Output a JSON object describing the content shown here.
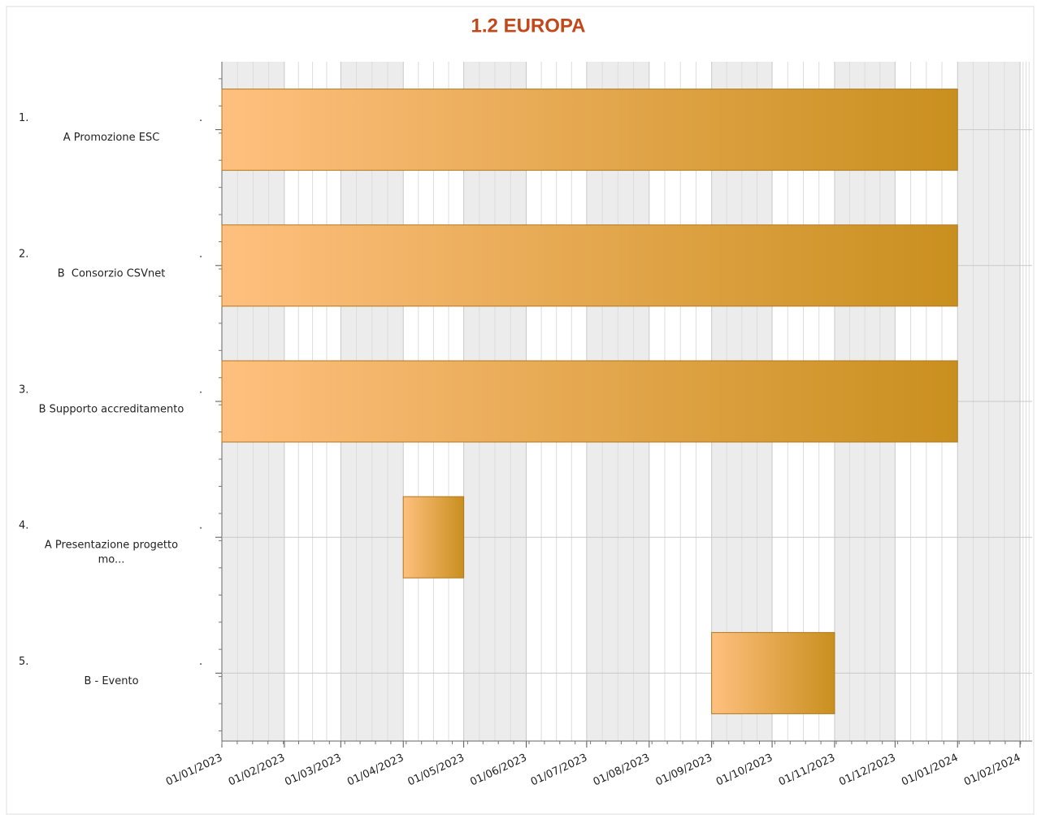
{
  "chart_data": {
    "type": "gantt",
    "title": "1.2 EUROPA",
    "numbers": [
      "1.",
      "2.",
      "3.",
      "4.",
      "5."
    ],
    "separator": ".",
    "categories": [
      [
        "A Promozione ESC"
      ],
      [
        "B  Consorzio CSVnet"
      ],
      [
        "B Supporto accreditamento"
      ],
      [
        "A Presentazione progetto",
        "mo..."
      ],
      [
        "B - Evento"
      ]
    ],
    "starts": [
      "2023-01-01",
      "2023-01-01",
      "2023-01-01",
      "2023-04-01",
      "2023-09-01"
    ],
    "ends": [
      "2024-01-01",
      "2024-01-01",
      "2024-01-01",
      "2023-05-01",
      "2023-11-01"
    ],
    "color_start": "#ffc07f",
    "color_end": "#c98f1e",
    "xlim": [
      "2023-01-01",
      "2024-02-07"
    ],
    "xticks": [
      {
        "value": "2023-01-01",
        "label": "01/01/2023"
      },
      {
        "value": "2023-02-01",
        "label": "01/02/2023"
      },
      {
        "value": "2023-03-01",
        "label": "01/03/2023"
      },
      {
        "value": "2023-04-01",
        "label": "01/04/2023"
      },
      {
        "value": "2023-05-01",
        "label": "01/05/2023"
      },
      {
        "value": "2023-06-01",
        "label": "01/06/2023"
      },
      {
        "value": "2023-07-01",
        "label": "01/07/2023"
      },
      {
        "value": "2023-08-01",
        "label": "01/08/2023"
      },
      {
        "value": "2023-09-01",
        "label": "01/09/2023"
      },
      {
        "value": "2023-10-01",
        "label": "01/10/2023"
      },
      {
        "value": "2023-11-01",
        "label": "01/11/2023"
      },
      {
        "value": "2023-12-01",
        "label": "01/12/2023"
      },
      {
        "value": "2024-01-01",
        "label": "01/01/2024"
      },
      {
        "value": "2024-02-01",
        "label": "01/02/2024"
      }
    ],
    "grid": true
  }
}
